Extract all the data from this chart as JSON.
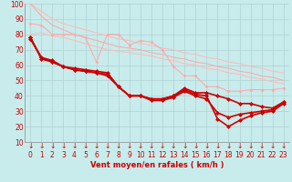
{
  "xlabel": "Vent moyen/en rafales ( km/h )",
  "background_color": "#c8ecec",
  "grid_color": "#b0d0d0",
  "xlim": [
    -0.5,
    23.5
  ],
  "ylim": [
    10,
    100
  ],
  "yticks": [
    10,
    20,
    30,
    40,
    50,
    60,
    70,
    80,
    90,
    100
  ],
  "xticks": [
    0,
    1,
    2,
    3,
    4,
    5,
    6,
    7,
    8,
    9,
    10,
    11,
    12,
    13,
    14,
    15,
    16,
    17,
    18,
    19,
    20,
    21,
    22,
    23
  ],
  "series": [
    {
      "name": "light1",
      "x": [
        0,
        1,
        2,
        3,
        4,
        5,
        6,
        7,
        8,
        9,
        10,
        11,
        12,
        13,
        14,
        15,
        16,
        17,
        18,
        19,
        20,
        21,
        22,
        23
      ],
      "y": [
        100,
        95,
        90,
        87,
        85,
        83,
        81,
        79,
        77,
        76,
        74,
        73,
        71,
        70,
        68,
        67,
        65,
        64,
        62,
        61,
        59,
        58,
        56,
        55
      ],
      "color": "#ffbbbb",
      "lw": 0.8,
      "marker": null,
      "ms": 0
    },
    {
      "name": "light2",
      "x": [
        0,
        1,
        2,
        3,
        4,
        5,
        6,
        7,
        8,
        9,
        10,
        11,
        12,
        13,
        14,
        15,
        16,
        17,
        18,
        19,
        20,
        21,
        22,
        23
      ],
      "y": [
        100,
        92,
        86,
        83,
        80,
        78,
        76,
        74,
        72,
        71,
        70,
        68,
        67,
        65,
        64,
        62,
        61,
        59,
        58,
        56,
        55,
        53,
        52,
        50
      ],
      "color": "#ffaaaa",
      "lw": 0.8,
      "marker": null,
      "ms": 0
    },
    {
      "name": "light3_wiggly",
      "x": [
        0,
        1,
        2,
        3,
        4,
        5,
        6,
        7,
        8,
        9,
        10,
        11,
        12,
        13,
        14,
        15,
        16,
        17,
        18,
        19,
        20,
        21,
        22,
        23
      ],
      "y": [
        87,
        86,
        80,
        80,
        80,
        78,
        62,
        80,
        80,
        73,
        76,
        75,
        70,
        59,
        53,
        53,
        46,
        46,
        43,
        43,
        44,
        44,
        44,
        45
      ],
      "color": "#ffaaaa",
      "lw": 0.8,
      "marker": "D",
      "ms": 2
    },
    {
      "name": "light4_lower",
      "x": [
        0,
        1,
        2,
        3,
        4,
        5,
        6,
        7,
        8,
        9,
        10,
        11,
        12,
        13,
        14,
        15,
        16,
        17,
        18,
        19,
        20,
        21,
        22,
        23
      ],
      "y": [
        80,
        81,
        79,
        78,
        76,
        74,
        72,
        70,
        69,
        68,
        67,
        66,
        64,
        63,
        61,
        60,
        58,
        57,
        55,
        54,
        52,
        51,
        49,
        48
      ],
      "color": "#ffbbbb",
      "lw": 0.8,
      "marker": null,
      "ms": 0
    },
    {
      "name": "dark_main1",
      "x": [
        0,
        1,
        2,
        3,
        4,
        5,
        6,
        7,
        8,
        9,
        10,
        11,
        12,
        13,
        14,
        15,
        16,
        17,
        18,
        19,
        20,
        21,
        22,
        23
      ],
      "y": [
        77,
        65,
        62,
        59,
        57,
        56,
        55,
        54,
        46,
        40,
        40,
        37,
        37,
        39,
        43,
        40,
        38,
        29,
        26,
        28,
        29,
        30,
        31,
        36
      ],
      "color": "#cc0000",
      "lw": 1.2,
      "marker": "D",
      "ms": 2.5
    },
    {
      "name": "dark_main2",
      "x": [
        0,
        1,
        2,
        3,
        4,
        5,
        6,
        7,
        8,
        9,
        10,
        11,
        12,
        13,
        14,
        15,
        16,
        17,
        18,
        19,
        20,
        21,
        22,
        23
      ],
      "y": [
        78,
        64,
        62,
        59,
        57,
        56,
        55,
        53,
        46,
        40,
        40,
        38,
        38,
        40,
        44,
        41,
        40,
        25,
        20,
        24,
        27,
        29,
        30,
        35
      ],
      "color": "#cc0000",
      "lw": 1.2,
      "marker": "D",
      "ms": 2.5
    },
    {
      "name": "dark_main3",
      "x": [
        0,
        1,
        2,
        3,
        4,
        5,
        6,
        7,
        8,
        9,
        10,
        11,
        12,
        13,
        14,
        15,
        16,
        17,
        18,
        19,
        20,
        21,
        22,
        23
      ],
      "y": [
        78,
        65,
        63,
        59,
        58,
        57,
        56,
        55,
        46,
        40,
        40,
        38,
        38,
        40,
        45,
        42,
        42,
        40,
        38,
        35,
        35,
        33,
        32,
        36
      ],
      "color": "#cc0000",
      "lw": 1.2,
      "marker": "D",
      "ms": 2.5
    }
  ],
  "arrow_color": "#cc0000",
  "xlabel_color": "#cc0000",
  "xlabel_fontsize": 6,
  "tick_fontsize": 5.5
}
